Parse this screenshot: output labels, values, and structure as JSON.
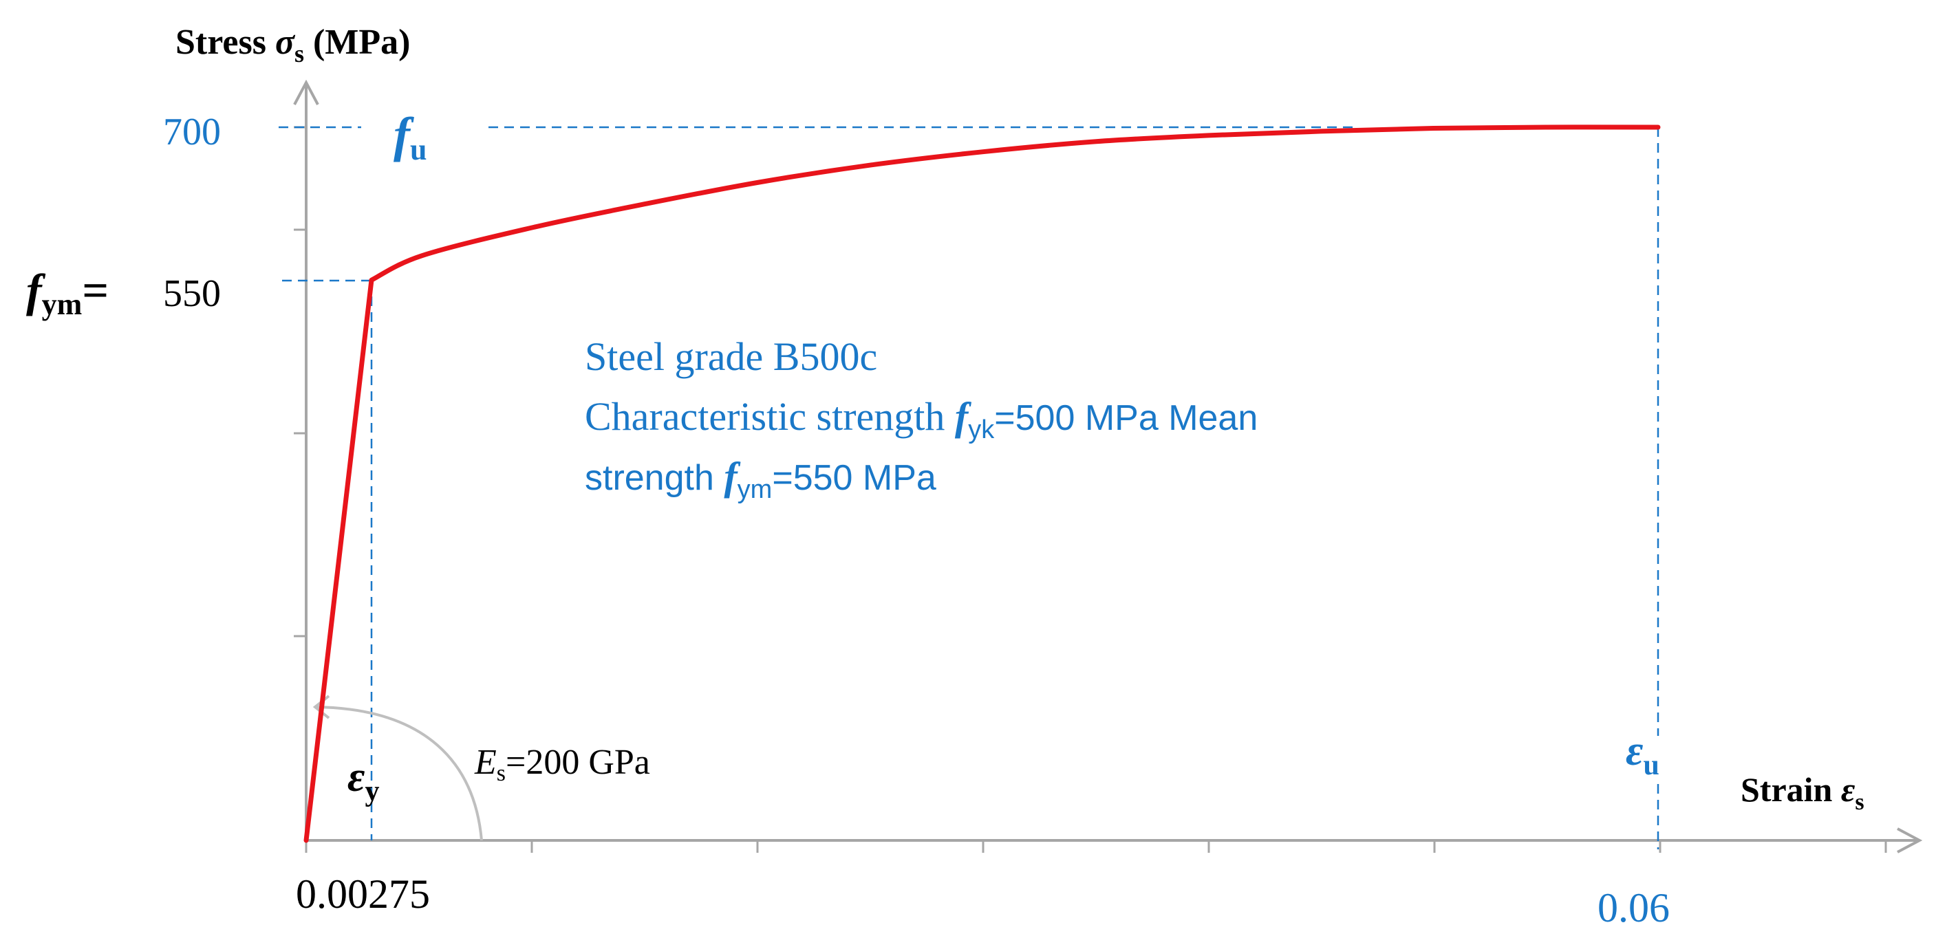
{
  "chart_data": {
    "type": "line",
    "title": "",
    "colors": {
      "curve": "#e8141b",
      "axis": "#a6a6a6",
      "annotation": "#1a78c8",
      "text": "#000000",
      "arc": "#bfbfbf"
    },
    "y_axis": {
      "label_main": "Stress ",
      "label_symbol": "σ",
      "label_sub": "s",
      "label_unit": " (MPa)",
      "tick_700": "700",
      "tick_550": "550",
      "fym_label": "f",
      "fym_sub": "ym",
      "fym_eq": "=",
      "fu_label": "f",
      "fu_sub": "u"
    },
    "x_axis": {
      "label_main": "Strain ",
      "label_symbol": "ε",
      "label_sub": "s",
      "tick_ey": "0.00275",
      "tick_eu": "0.06",
      "ey_label": "ε",
      "ey_sub": "y",
      "eu_label": "ε",
      "eu_sub": "u"
    },
    "ylim": [
      0,
      700
    ],
    "xlim": [
      0,
      0.06
    ],
    "series": [
      {
        "x": [
          0,
          0.00275,
          0.005,
          0.01,
          0.015,
          0.02,
          0.025,
          0.03,
          0.035,
          0.04,
          0.045,
          0.05,
          0.055,
          0.06
        ],
        "y": [
          0,
          550,
          574,
          602,
          625,
          646,
          663,
          676,
          686,
          692,
          696,
          699,
          700,
          700
        ]
      }
    ],
    "annotations": {
      "modulus_E": "E",
      "modulus_sub": "s",
      "modulus_value": "=200 GPa",
      "line1": "Steel grade B500c",
      "line2_a": "Characteristic strength ",
      "line2_f": "f",
      "line2_sub": "yk",
      "line2_b": "=500 MPa Mean",
      "line3_a": "strength ",
      "line3_f": "f",
      "line3_sub": "ym",
      "line3_b": "=550 MPa"
    }
  }
}
